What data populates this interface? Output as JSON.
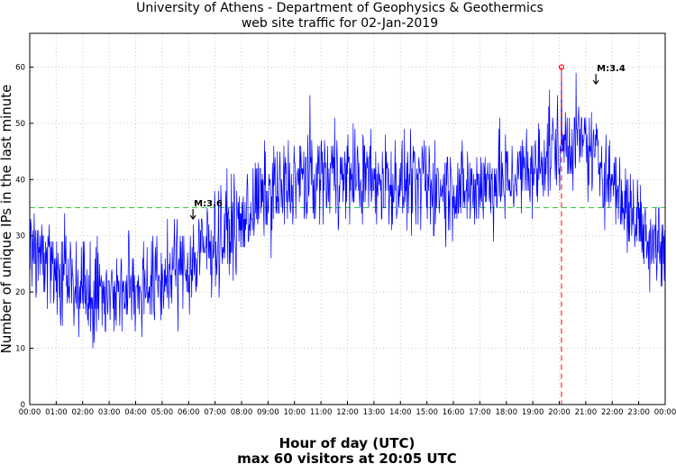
{
  "chart_data": {
    "type": "line",
    "title_line1": "University of Athens - Department of Geophysics & Geothermics",
    "title_line2": "web site traffic for 02-Jan-2019",
    "xlabel": "Hour of day (UTC)",
    "subtitle": "max 60 visitors at 20:05 UTC",
    "ylabel": "Number of unique IPs in the last minute",
    "xlim_minutes": [
      0,
      1440
    ],
    "ylim": [
      0,
      66
    ],
    "yticks": [
      0,
      10,
      20,
      30,
      40,
      50,
      60
    ],
    "xtick_labels": [
      "00:00",
      "01:00",
      "02:00",
      "03:00",
      "04:00",
      "05:00",
      "06:00",
      "07:00",
      "08:00",
      "09:00",
      "10:00",
      "11:00",
      "12:00",
      "13:00",
      "14:00",
      "15:00",
      "16:00",
      "17:00",
      "18:00",
      "19:00",
      "20:00",
      "21:00",
      "22:00",
      "23:00",
      "00:00"
    ],
    "grid": true,
    "series_color": "#0000ff",
    "reference_line": {
      "value": 35,
      "color": "#33cc33"
    },
    "max_marker": {
      "minute": 1205,
      "value": 60,
      "color": "#ff0000"
    },
    "annotations": [
      {
        "label": "M:3.6",
        "minute": 370,
        "value": 33
      },
      {
        "label": "M:3.4",
        "minute": 1283,
        "value": 57
      }
    ],
    "hourly_baseline": [
      {
        "hour": 0,
        "value": 28
      },
      {
        "hour": 1,
        "value": 24
      },
      {
        "hour": 2,
        "value": 21
      },
      {
        "hour": 3,
        "value": 20
      },
      {
        "hour": 4,
        "value": 21
      },
      {
        "hour": 5,
        "value": 22
      },
      {
        "hour": 6,
        "value": 25
      },
      {
        "hour": 7,
        "value": 29
      },
      {
        "hour": 8,
        "value": 33
      },
      {
        "hour": 9,
        "value": 38
      },
      {
        "hour": 10,
        "value": 39
      },
      {
        "hour": 11,
        "value": 41
      },
      {
        "hour": 12,
        "value": 41
      },
      {
        "hour": 13,
        "value": 40
      },
      {
        "hour": 14,
        "value": 39
      },
      {
        "hour": 15,
        "value": 39
      },
      {
        "hour": 16,
        "value": 38
      },
      {
        "hour": 17,
        "value": 39
      },
      {
        "hour": 18,
        "value": 40
      },
      {
        "hour": 19,
        "value": 41
      },
      {
        "hour": 20,
        "value": 47
      },
      {
        "hour": 21,
        "value": 46
      },
      {
        "hour": 22,
        "value": 40
      },
      {
        "hour": 23,
        "value": 32
      },
      {
        "hour": 24,
        "value": 28
      }
    ],
    "noise_amplitude": 6
  }
}
